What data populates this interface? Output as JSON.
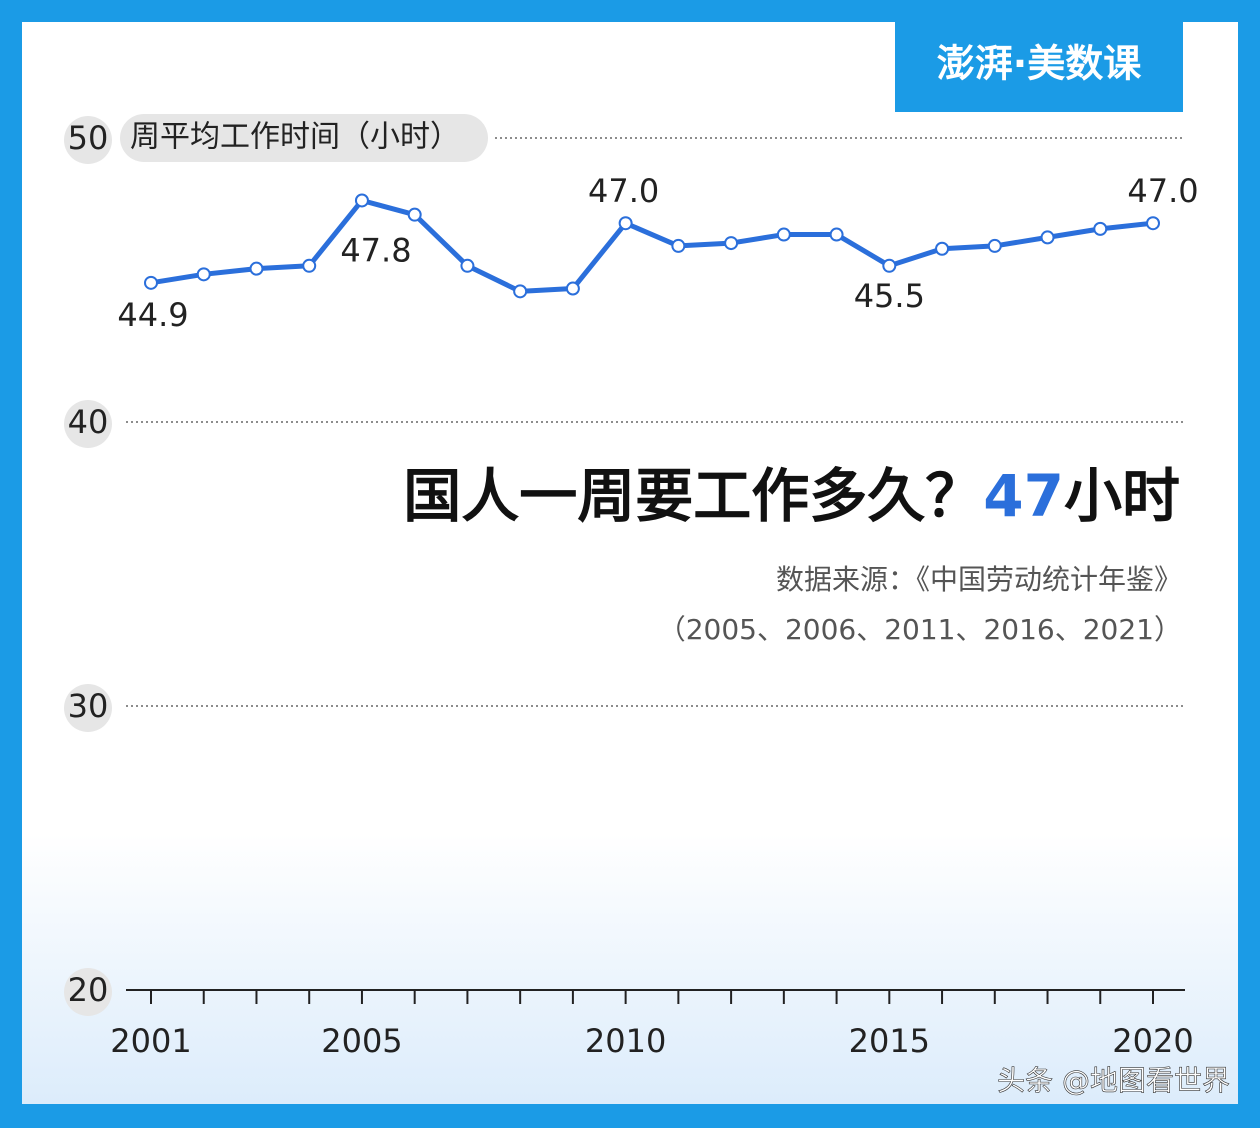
{
  "chart_data": {
    "type": "line",
    "y_label": "周平均工作时间（小时）",
    "title": "国人一周要工作多久？",
    "title_highlight": "47",
    "title_suffix": "小时",
    "source": "数据来源：《中国劳动统计年鉴》",
    "source_years": "（2005、2006、2011、2016、2021）",
    "x": [
      2001,
      2002,
      2003,
      2004,
      2005,
      2006,
      2007,
      2008,
      2009,
      2010,
      2011,
      2012,
      2013,
      2014,
      2015,
      2016,
      2017,
      2018,
      2019,
      2020
    ],
    "series": [
      {
        "name": "周平均工作时间",
        "color": "#2b6fdb",
        "values": [
          44.9,
          45.2,
          45.4,
          45.5,
          47.8,
          47.3,
          45.5,
          44.6,
          44.7,
          47.0,
          46.2,
          46.3,
          46.6,
          46.6,
          45.5,
          46.1,
          46.2,
          46.5,
          46.8,
          47.0
        ],
        "value_labels": [
          "44.9",
          null,
          null,
          null,
          "47.8",
          null,
          null,
          null,
          null,
          "47.0",
          null,
          null,
          null,
          null,
          "45.5",
          null,
          null,
          null,
          null,
          "47.0"
        ]
      }
    ],
    "xlim": [
      2001,
      2020
    ],
    "xticks": [
      2001,
      2005,
      2010,
      2015,
      2020
    ],
    "ylim": [
      20,
      50
    ],
    "yticks": [
      20,
      30,
      40,
      50
    ],
    "grid": true
  },
  "brand": "澎湃·美数课",
  "watermark": "头条 @地图看世界"
}
